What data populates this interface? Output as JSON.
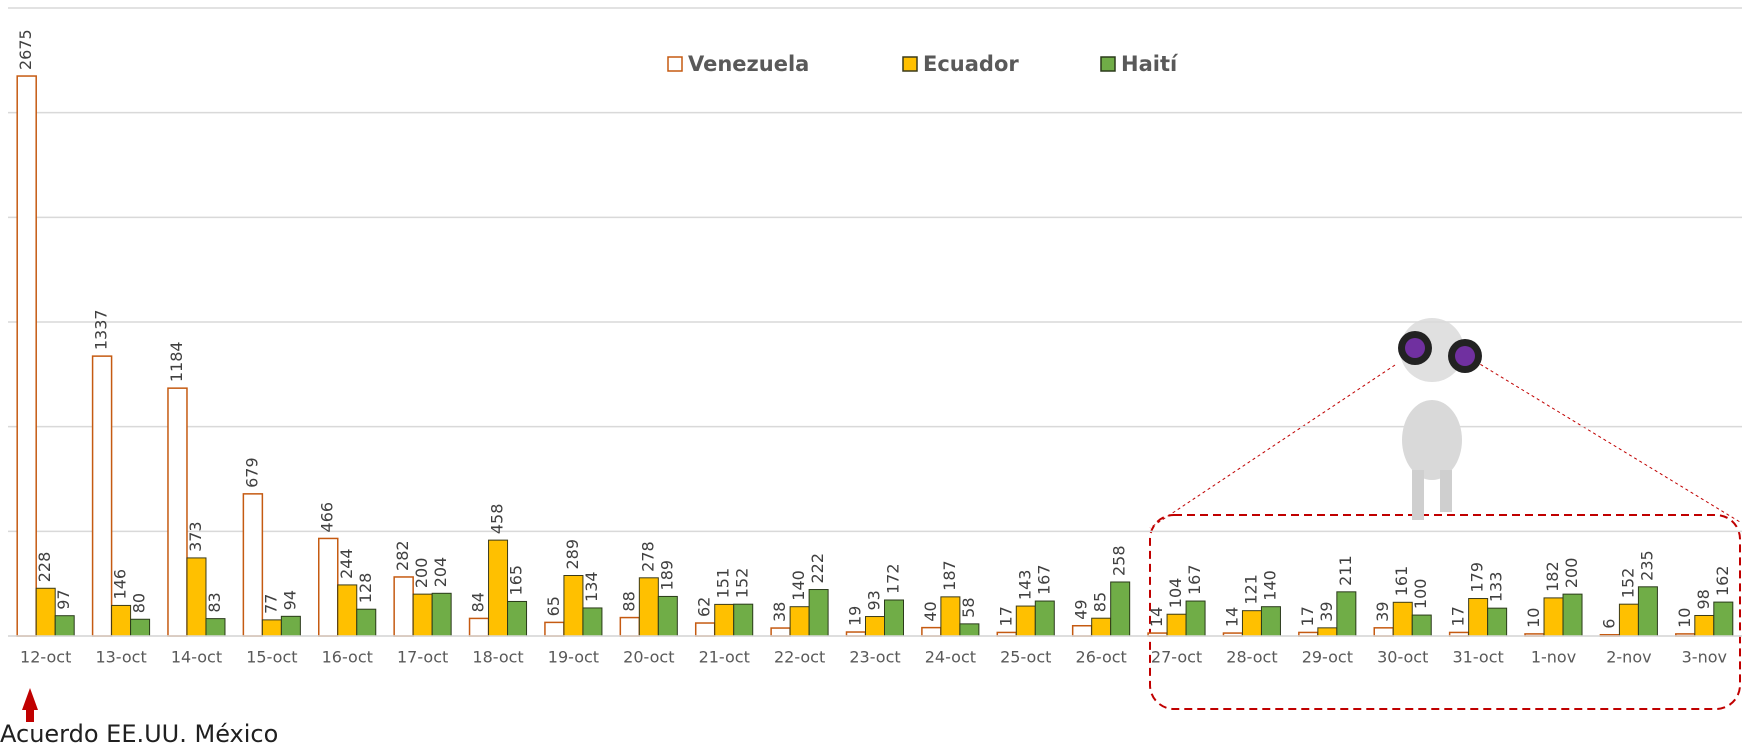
{
  "chart_data": {
    "type": "bar",
    "categories": [
      "12-oct",
      "13-oct",
      "14-oct",
      "15-oct",
      "16-oct",
      "17-oct",
      "18-oct",
      "19-oct",
      "20-oct",
      "21-oct",
      "22-oct",
      "23-oct",
      "24-oct",
      "25-oct",
      "26-oct",
      "27-oct",
      "28-oct",
      "29-oct",
      "30-oct",
      "31-oct",
      "1-nov",
      "2-nov",
      "3-nov"
    ],
    "series": [
      {
        "name": "Venezuela",
        "color": "#ffffff",
        "values": [
          2675,
          1337,
          1184,
          679,
          466,
          282,
          84,
          65,
          88,
          62,
          38,
          19,
          40,
          17,
          49,
          14,
          14,
          17,
          39,
          17,
          10,
          6,
          10
        ]
      },
      {
        "name": "Ecuador",
        "color": "#ffc000",
        "values": [
          228,
          146,
          373,
          77,
          244,
          200,
          458,
          289,
          278,
          151,
          140,
          93,
          187,
          143,
          85,
          104,
          121,
          39,
          161,
          179,
          182,
          152,
          98
        ]
      },
      {
        "name": "Haití",
        "color": "#70ad47",
        "values": [
          97,
          80,
          83,
          94,
          128,
          204,
          165,
          134,
          189,
          152,
          222,
          172,
          58,
          167,
          258,
          167,
          140,
          211,
          100,
          133,
          200,
          235,
          162
        ]
      }
    ],
    "ylim": [
      0,
      3000
    ],
    "yticks": [
      0,
      500,
      1000,
      1500,
      2000,
      2500,
      3000
    ],
    "grid": true,
    "annotations": [
      "Acuerdo EE.UU. México"
    ]
  }
}
